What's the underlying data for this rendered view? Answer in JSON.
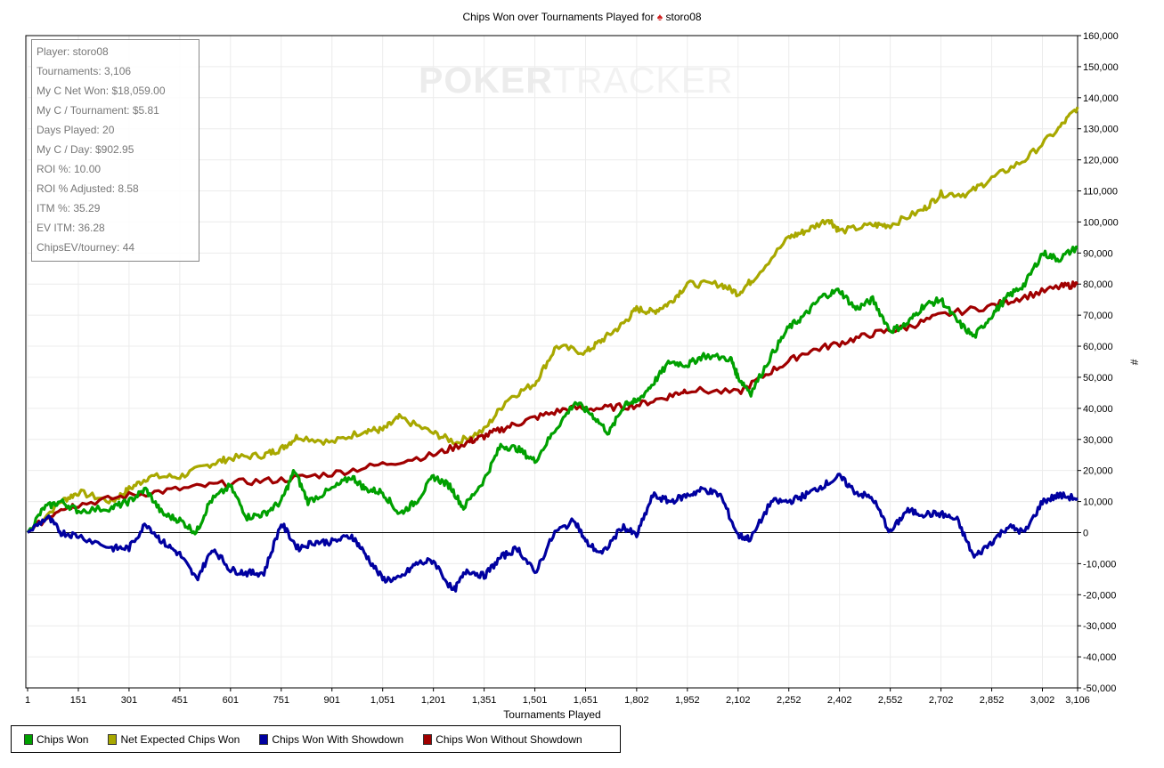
{
  "chart_data": {
    "type": "line",
    "title": "Chips Won over Tournaments Played for",
    "title_player": "storo08",
    "xlabel": "Tournaments Played",
    "ylabel": "#",
    "xlim": [
      1,
      3106
    ],
    "ylim": [
      -50000,
      160000
    ],
    "grid": true,
    "legend_placement": "bottom-left",
    "x_ticks": [
      1,
      151,
      301,
      451,
      601,
      751,
      901,
      1051,
      1201,
      1351,
      1501,
      1651,
      1802,
      1952,
      2102,
      2252,
      2402,
      2552,
      2702,
      2852,
      3002,
      3106
    ],
    "x_tick_labels": [
      "1",
      "151",
      "301",
      "451",
      "601",
      "751",
      "901",
      "1,051",
      "1,201",
      "1,351",
      "1,501",
      "1,651",
      "1,802",
      "1,952",
      "2,102",
      "2,252",
      "2,402",
      "2,552",
      "2,702",
      "2,852",
      "3,002",
      "3,106"
    ],
    "y_ticks": [
      160000,
      150000,
      140000,
      130000,
      120000,
      110000,
      100000,
      90000,
      80000,
      70000,
      60000,
      50000,
      40000,
      30000,
      20000,
      10000,
      0,
      -10000,
      -20000,
      -30000,
      -40000,
      -50000
    ],
    "y_tick_labels": [
      "160,000",
      "150,000",
      "140,000",
      "130,000",
      "120,000",
      "110,000",
      "100,000",
      "90,000",
      "80,000",
      "70,000",
      "60,000",
      "50,000",
      "40,000",
      "30,000",
      "20,000",
      "10,000",
      "0",
      "-10,000",
      "-20,000",
      "-30,000",
      "-40,000",
      "-50,000"
    ],
    "series": [
      {
        "name": "Net Expected Chips Won",
        "color": "#a8a800",
        "x": [
          1,
          100,
          151,
          250,
          301,
          360,
          451,
          540,
          601,
          700,
          751,
          800,
          901,
          1000,
          1051,
          1100,
          1201,
          1270,
          1351,
          1420,
          1501,
          1565,
          1651,
          1700,
          1760,
          1802,
          1850,
          1900,
          1952,
          2050,
          2102,
          2150,
          2252,
          2300,
          2370,
          2402,
          2500,
          2552,
          2650,
          2702,
          2780,
          2852,
          2950,
          3050,
          3106
        ],
        "y": [
          0,
          10000,
          13000,
          10000,
          14000,
          18000,
          18000,
          22000,
          24000,
          25000,
          27000,
          31000,
          29000,
          33000,
          33000,
          37000,
          32000,
          29000,
          33000,
          43000,
          48000,
          60000,
          58000,
          62000,
          67000,
          72000,
          71000,
          74000,
          80000,
          80000,
          77000,
          82000,
          95000,
          97000,
          101000,
          97000,
          99000,
          99000,
          104000,
          109000,
          109000,
          114000,
          120000,
          130000,
          137000
        ]
      },
      {
        "name": "Chips Won Without Showdown",
        "color": "#a00000",
        "x": [
          1,
          100,
          151,
          301,
          451,
          601,
          751,
          901,
          1051,
          1201,
          1300,
          1351,
          1420,
          1501,
          1600,
          1700,
          1802,
          1900,
          1952,
          2102,
          2200,
          2300,
          2402,
          2500,
          2600,
          2702,
          2852,
          2950,
          3050,
          3106
        ],
        "y": [
          0,
          8000,
          9000,
          12000,
          14000,
          16000,
          17000,
          19000,
          22000,
          25000,
          29000,
          31000,
          34000,
          37000,
          40000,
          40000,
          41000,
          44000,
          46000,
          45000,
          52000,
          58000,
          61000,
          64000,
          66000,
          70000,
          73000,
          76000,
          79000,
          80000
        ]
      },
      {
        "name": "Chips Won",
        "color": "#00a000",
        "x": [
          1,
          50,
          100,
          151,
          250,
          301,
          350,
          400,
          451,
          500,
          540,
          600,
          650,
          700,
          751,
          790,
          830,
          901,
          960,
          1000,
          1051,
          1100,
          1150,
          1201,
          1250,
          1290,
          1351,
          1400,
          1450,
          1501,
          1560,
          1620,
          1670,
          1720,
          1770,
          1802,
          1850,
          1900,
          1952,
          2000,
          2080,
          2102,
          2140,
          2200,
          2252,
          2300,
          2350,
          2402,
          2450,
          2500,
          2552,
          2600,
          2650,
          2702,
          2750,
          2800,
          2852,
          2900,
          2950,
          3002,
          3050,
          3106
        ],
        "y": [
          0,
          8000,
          10000,
          7000,
          8000,
          10000,
          14000,
          6000,
          4000,
          0,
          10000,
          15000,
          5000,
          6000,
          10000,
          20000,
          10000,
          14000,
          18000,
          14000,
          13000,
          6000,
          10000,
          18000,
          15000,
          8000,
          17000,
          28000,
          27000,
          23000,
          33000,
          42000,
          38000,
          32000,
          42000,
          42000,
          48000,
          55000,
          54000,
          57000,
          56000,
          50000,
          45000,
          57000,
          66000,
          70000,
          76000,
          78000,
          72000,
          75000,
          65000,
          67000,
          73000,
          75000,
          68000,
          63000,
          70000,
          76000,
          80000,
          90000,
          88000,
          92000
        ]
      },
      {
        "name": "Chips Won With Showdown",
        "color": "#0000a0",
        "x": [
          1,
          60,
          100,
          151,
          250,
          301,
          351,
          400,
          451,
          500,
          550,
          601,
          650,
          700,
          751,
          800,
          850,
          901,
          960,
          1000,
          1051,
          1100,
          1150,
          1201,
          1260,
          1300,
          1351,
          1400,
          1450,
          1501,
          1560,
          1620,
          1651,
          1700,
          1760,
          1802,
          1850,
          1900,
          1952,
          2000,
          2050,
          2102,
          2140,
          2200,
          2252,
          2300,
          2350,
          2402,
          2450,
          2500,
          2552,
          2600,
          2650,
          2702,
          2750,
          2800,
          2852,
          2900,
          2950,
          3002,
          3050,
          3106
        ],
        "y": [
          0,
          5000,
          0,
          -1000,
          -5000,
          -5000,
          3000,
          -3000,
          -7000,
          -15000,
          -5000,
          -12000,
          -13000,
          -13000,
          3000,
          -5000,
          -3000,
          -3000,
          -1000,
          -7000,
          -15000,
          -15000,
          -10000,
          -9000,
          -19000,
          -12000,
          -14000,
          -8000,
          -5000,
          -13000,
          0,
          4000,
          -3000,
          -7000,
          2000,
          -1000,
          12000,
          10000,
          12000,
          14000,
          12000,
          -1000,
          -2000,
          10000,
          10000,
          12000,
          15000,
          18000,
          13000,
          11000,
          0,
          7000,
          6000,
          6000,
          4000,
          -8000,
          -3000,
          2000,
          0,
          10000,
          12000,
          11000
        ]
      }
    ],
    "legend": [
      "Chips Won",
      "Net Expected Chips Won",
      "Chips Won With Showdown",
      "Chips Won Without Showdown"
    ]
  },
  "stats": [
    "Player: storo08",
    "Tournaments: 3,106",
    "My C Net Won: $18,059.00",
    "My C / Tournament: $5.81",
    "Days Played: 20",
    "My C / Day: $902.95",
    "ROI %: 10.00",
    "ROI % Adjusted: 8.58",
    "ITM %: 35.29",
    "EV ITM: 36.28",
    "ChipsEV/tourney: 44"
  ],
  "legend_colors": {
    "Chips Won": "#00a000",
    "Net Expected Chips Won": "#a8a800",
    "Chips Won With Showdown": "#0000a0",
    "Chips Won Without Showdown": "#a00000"
  },
  "watermark": {
    "part1": "POKER",
    "part2": "TRACKER"
  }
}
